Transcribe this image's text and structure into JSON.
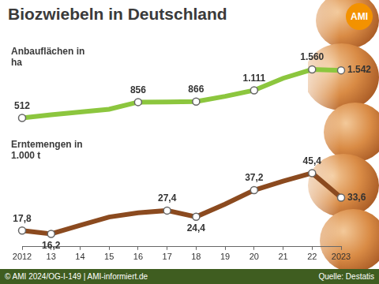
{
  "title": "Biozwiebeln in Deutschland",
  "logo": "AMI",
  "footer": {
    "credit": "© AMI 2024/OG-I-149 | AMI-informiert.de",
    "source": "Quelle: Destatis"
  },
  "chart_data": [
    {
      "type": "line",
      "y_label": "Anbauflächen in ha",
      "categories": [
        "2012",
        "13",
        "14",
        "15",
        "16",
        "17",
        "18",
        "19",
        "20",
        "21",
        "22",
        "2023"
      ],
      "values": [
        512,
        580,
        640,
        700,
        856,
        860,
        866,
        980,
        1111,
        1370,
        1560,
        1542
      ],
      "value_labels": [
        "512",
        null,
        null,
        null,
        "856",
        null,
        "866",
        null,
        "1.111",
        null,
        "1.560",
        "1.542"
      ],
      "color": "#8cc63e",
      "marker": "circle",
      "data_labels": true,
      "tick_labels": false,
      "grid": false,
      "ylim": [
        300,
        1800
      ]
    },
    {
      "type": "line",
      "y_label": "Erntemengen in 1.000 t",
      "categories": [
        "2012",
        "13",
        "14",
        "15",
        "16",
        "17",
        "18",
        "19",
        "20",
        "21",
        "22",
        "2023"
      ],
      "values": [
        17.8,
        16.2,
        20.3,
        24.3,
        26.3,
        27.4,
        24.4,
        30.5,
        37.2,
        41.5,
        45.4,
        33.6
      ],
      "value_labels": [
        "17,8",
        "16,2",
        null,
        null,
        null,
        "27,4",
        "24,4",
        null,
        "37,2",
        null,
        "45,4",
        "33,6"
      ],
      "color": "#8b4a1f",
      "marker": "circle",
      "data_labels": true,
      "tick_labels": "x",
      "grid": false,
      "ylim": [
        10,
        52
      ]
    }
  ]
}
